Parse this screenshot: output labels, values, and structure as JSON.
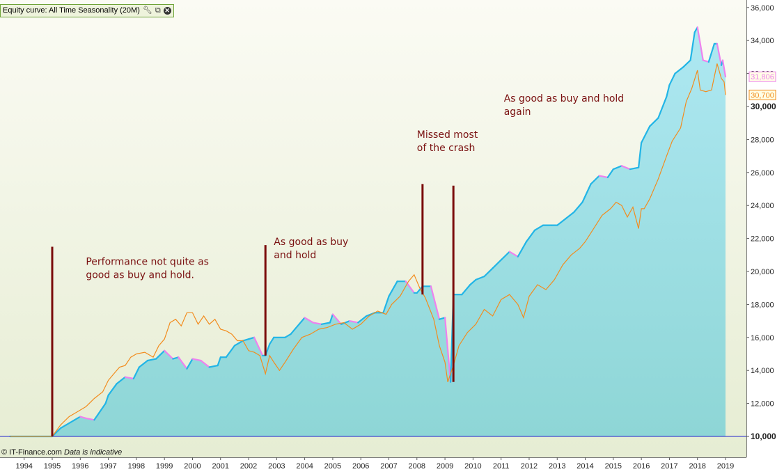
{
  "window": {
    "indicator_label": "Equity curve: All Time Seasonality (20M)",
    "copyright": "© IT-Finance.com",
    "disclaimer": "Data is indicative"
  },
  "colors": {
    "equity_fill_top": "#aee8f2",
    "equity_fill_bottom": "#8ed6d6",
    "equity_line": "#22b5e6",
    "drawdown_line": "#ee82ee",
    "benchmark_line": "#f28c1e",
    "baseline": "#2222cc",
    "annotation_line": "#7a0a0a",
    "annotation_text": "#7a1111",
    "bg_top": "#fbfbf4",
    "bg_bottom": "#e6edd3"
  },
  "chart_data": {
    "type": "line",
    "title": "Equity curve: All Time Seasonality (20M)",
    "x_range": [
      1993.5,
      2019.4
    ],
    "ylim": [
      9000,
      36300
    ],
    "x_ticks": [
      "1994",
      "1995",
      "1996",
      "1997",
      "1998",
      "1999",
      "2000",
      "2001",
      "2002",
      "2003",
      "2004",
      "2005",
      "2006",
      "2007",
      "2008",
      "2009",
      "2010",
      "2011",
      "2012",
      "2013",
      "2014",
      "2015",
      "2016",
      "2017",
      "2018",
      "2019"
    ],
    "y_ticks": [
      "10,000",
      "12,000",
      "14,000",
      "16,000",
      "18,000",
      "20,000",
      "22,000",
      "24,000",
      "26,000",
      "28,000",
      "30,000",
      "32,000",
      "34,000",
      "36,000"
    ],
    "baseline_value": 10000,
    "last_values": {
      "equity": "31,806",
      "benchmark": "30,700"
    },
    "series": [
      {
        "name": "All Time Seasonality (20M)",
        "x": [
          1993.5,
          1995.0,
          1995.3,
          1995.5,
          1995.8,
          1996.0,
          1996.2,
          1996.5,
          1996.9,
          1997.0,
          1997.3,
          1997.6,
          1997.9,
          1998.1,
          1998.4,
          1998.7,
          1999.0,
          1999.3,
          1999.5,
          1999.8,
          2000.0,
          2000.3,
          2000.6,
          2000.9,
          2001.0,
          2001.2,
          2001.5,
          2001.8,
          2002.0,
          2002.2,
          2002.5,
          2002.6,
          2002.75,
          2002.9,
          2003.3,
          2003.5,
          2003.8,
          2004.0,
          2004.3,
          2004.6,
          2004.9,
          2005.0,
          2005.3,
          2005.6,
          2005.9,
          2006.2,
          2006.5,
          2006.8,
          2007.0,
          2007.3,
          2007.6,
          2007.9,
          2008.0,
          2008.2,
          2008.5,
          2008.8,
          2009.0,
          2009.2,
          2009.3,
          2009.6,
          2009.9,
          2010.1,
          2010.4,
          2010.7,
          2011.0,
          2011.3,
          2011.6,
          2011.9,
          2012.2,
          2012.5,
          2012.8,
          2013.0,
          2013.3,
          2013.6,
          2013.9,
          2014.2,
          2014.5,
          2014.8,
          2015.0,
          2015.3,
          2015.6,
          2015.9,
          2016.0,
          2016.3,
          2016.6,
          2016.9,
          2017.0,
          2017.2,
          2017.5,
          2017.75,
          2017.9,
          2018.0,
          2018.2,
          2018.4,
          2018.6,
          2018.7,
          2018.85,
          2018.9,
          2019.0
        ],
        "values": [
          10000,
          10000,
          10500,
          10700,
          11000,
          11200,
          11100,
          11000,
          12000,
          12500,
          13200,
          13600,
          13500,
          14200,
          14600,
          14700,
          15200,
          14700,
          14800,
          14100,
          14700,
          14600,
          14200,
          14300,
          14800,
          14800,
          15500,
          15800,
          15900,
          16000,
          14900,
          14900,
          15600,
          16000,
          16000,
          16200,
          16800,
          17200,
          16900,
          16800,
          16900,
          17400,
          16800,
          17000,
          16900,
          17300,
          17500,
          17500,
          18500,
          19400,
          19400,
          18700,
          18700,
          19100,
          19100,
          17100,
          17200,
          13300,
          18600,
          18600,
          19200,
          19500,
          19700,
          20200,
          20700,
          21200,
          20900,
          21800,
          22500,
          22800,
          22800,
          22800,
          23200,
          23600,
          24200,
          25300,
          25800,
          25700,
          26200,
          26400,
          26200,
          26300,
          27800,
          28800,
          29300,
          30600,
          31300,
          32000,
          32400,
          32800,
          34500,
          34800,
          32800,
          32700,
          33800,
          33800,
          32500,
          32800,
          31806
        ]
      },
      {
        "name": "Buy and hold",
        "x": [
          1993.5,
          1995.0,
          1995.3,
          1995.6,
          1995.9,
          1996.2,
          1996.5,
          1996.8,
          1997.0,
          1997.2,
          1997.4,
          1997.6,
          1997.8,
          1998.0,
          1998.3,
          1998.6,
          1998.8,
          1999.0,
          1999.2,
          1999.4,
          1999.6,
          1999.8,
          2000.0,
          2000.2,
          2000.4,
          2000.6,
          2000.8,
          2001.0,
          2001.2,
          2001.4,
          2001.6,
          2001.8,
          2002.0,
          2002.2,
          2002.4,
          2002.6,
          2002.75,
          2002.9,
          2003.1,
          2003.3,
          2003.6,
          2003.9,
          2004.2,
          2004.5,
          2004.8,
          2005.1,
          2005.4,
          2005.7,
          2006.0,
          2006.3,
          2006.6,
          2006.9,
          2007.1,
          2007.4,
          2007.7,
          2007.9,
          2008.1,
          2008.3,
          2008.6,
          2008.8,
          2009.0,
          2009.1,
          2009.3,
          2009.5,
          2009.8,
          2010.1,
          2010.4,
          2010.7,
          2011.0,
          2011.3,
          2011.6,
          2011.8,
          2012.0,
          2012.3,
          2012.6,
          2012.9,
          2013.2,
          2013.5,
          2013.8,
          2014.0,
          2014.3,
          2014.6,
          2014.9,
          2015.1,
          2015.3,
          2015.5,
          2015.7,
          2015.9,
          2016.0,
          2016.1,
          2016.3,
          2016.6,
          2016.9,
          2017.1,
          2017.4,
          2017.6,
          2017.8,
          2018.0,
          2018.1,
          2018.3,
          2018.5,
          2018.7,
          2018.85,
          2018.95,
          2019.0
        ],
        "values": [
          10000,
          10000,
          10700,
          11200,
          11500,
          11800,
          12300,
          12700,
          13400,
          13800,
          14200,
          14300,
          14800,
          15000,
          15100,
          14800,
          15500,
          15900,
          16900,
          17100,
          16700,
          17500,
          17500,
          16800,
          17300,
          16800,
          17100,
          16500,
          16400,
          16200,
          15800,
          15800,
          15200,
          15100,
          14900,
          13800,
          14900,
          14500,
          14000,
          14500,
          15300,
          16000,
          16200,
          16500,
          16600,
          16800,
          16900,
          16500,
          16800,
          17300,
          17600,
          17400,
          18000,
          18500,
          19400,
          19800,
          19000,
          18400,
          17100,
          15500,
          14500,
          13300,
          14300,
          15500,
          16300,
          16800,
          17700,
          17300,
          18300,
          18600,
          18000,
          17200,
          18500,
          19200,
          18900,
          19500,
          20400,
          21000,
          21400,
          21800,
          22600,
          23400,
          23800,
          24200,
          24000,
          23300,
          23900,
          22600,
          23800,
          23800,
          24400,
          25600,
          27000,
          27900,
          28700,
          30300,
          31100,
          32200,
          31000,
          30900,
          31000,
          32600,
          31700,
          31500,
          30700
        ]
      }
    ],
    "annotations": [
      {
        "label_lines": [
          "Performance not quite as",
          "good as buy and hold."
        ],
        "x": 1995.0,
        "y_top": 21500,
        "y_bottom": 10000,
        "text_x": 1996.2,
        "text_y": 20400
      },
      {
        "label_lines": [
          "As good as buy",
          "and hold"
        ],
        "x": 2002.6,
        "y_top": 21600,
        "y_bottom": 14900,
        "text_x": 2002.9,
        "text_y": 21600
      },
      {
        "label_lines": [
          "Missed most",
          "of the crash"
        ],
        "x": 2008.2,
        "y_top": 25300,
        "y_bottom": 18600,
        "text_x": 2008.0,
        "text_y": 28100
      },
      {
        "label_lines": [],
        "x": 2009.3,
        "y_top": 25200,
        "y_bottom": 13300,
        "text_x": null,
        "text_y": null
      },
      {
        "label_lines": [
          "As good as buy and hold",
          "again"
        ],
        "x": null,
        "y_top": null,
        "y_bottom": null,
        "text_x": 2011.1,
        "text_y": 30300
      }
    ]
  }
}
